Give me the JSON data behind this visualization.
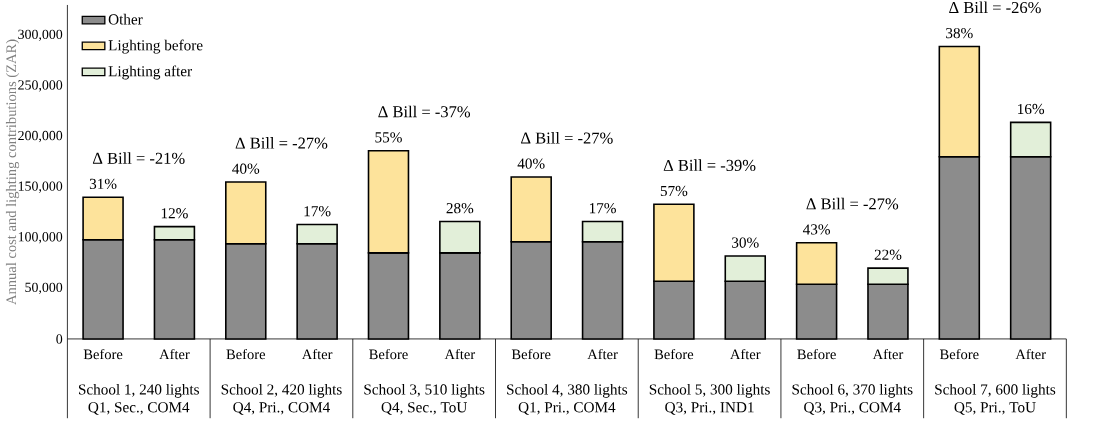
{
  "chart_data": {
    "type": "bar",
    "stacked": true,
    "ylabel": "Annual cost and lighting contributions (ZAR)",
    "categories": [
      "Before",
      "After",
      "Before",
      "After",
      "Before",
      "After",
      "Before",
      "After",
      "Before",
      "After",
      "Before",
      "After",
      "Before",
      "After"
    ],
    "series": [
      {
        "name": "Other",
        "color": "#8c8c8c",
        "values": [
          98000,
          98000,
          94000,
          94000,
          85000,
          85000,
          96000,
          96000,
          57000,
          57000,
          54000,
          54000,
          180000,
          180000
        ]
      },
      {
        "name": "Lighting before",
        "color": "#fde39b",
        "values": [
          42000,
          null,
          61000,
          null,
          101000,
          null,
          64000,
          null,
          76000,
          null,
          41000,
          null,
          109000,
          null
        ]
      },
      {
        "name": "Lighting after",
        "color": "#e2efd9",
        "values": [
          null,
          13000,
          null,
          19000,
          null,
          31000,
          null,
          20000,
          null,
          25000,
          null,
          16000,
          null,
          34000
        ]
      }
    ],
    "ylim": [
      0,
      330000
    ],
    "yticks": [
      {
        "value": 0,
        "label": "0"
      },
      {
        "value": 50000,
        "label": "50,000"
      },
      {
        "value": 100000,
        "label": "100,000"
      },
      {
        "value": 150000,
        "label": "150,000"
      },
      {
        "value": 200000,
        "label": "200,000"
      },
      {
        "value": 250000,
        "label": "250,000"
      },
      {
        "value": 300000,
        "label": "300,000"
      }
    ],
    "legend": "top left",
    "annotations": [
      "Δ Bill = -21%",
      "Δ Bill = -27%",
      "Δ Bill = -37%",
      "Δ Bill = -27%",
      "Δ Bill = -39%",
      "Δ Bill = -27%",
      "Δ Bill = -26%",
      "School 1, 240 lights",
      "School 2, 420 lights",
      "School 3, 510 lights",
      "School 4, 380 lights",
      "School 5, 300 lights",
      "School 6, 370 lights",
      "School 7, 600 lights",
      "Q1, Sec., COM4",
      "Q4, Pri., COM4",
      "Q4, Sec., ToU",
      "Q1, Pri., COM4",
      "Q3, Pri., IND1",
      "Q3, Pri., COM4",
      "Q5, Pri., ToU",
      "31%",
      "12%",
      "40%",
      "17%",
      "55%",
      "28%",
      "40%",
      "17%",
      "57%",
      "30%",
      "43%",
      "22%",
      "38%",
      "16%"
    ]
  }
}
